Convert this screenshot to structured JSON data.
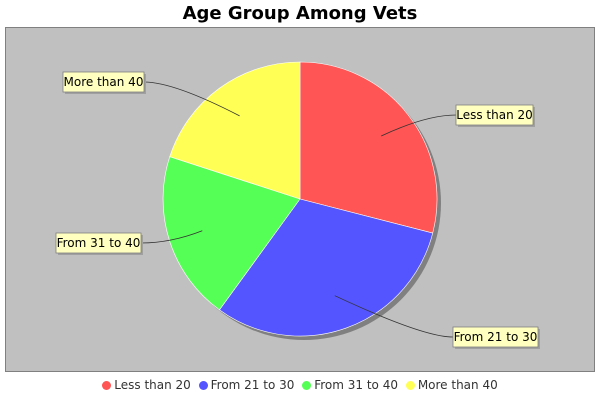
{
  "chart_data": {
    "type": "pie",
    "title": "Age Group Among Vets",
    "categories": [
      "Less than 20",
      "From 21 to 30",
      "From 31 to 40",
      "More than 40"
    ],
    "values": [
      29,
      31,
      20,
      20
    ],
    "colors": [
      "#ff5555",
      "#5555ff",
      "#55ff55",
      "#ffff55"
    ],
    "legend_position": "bottom",
    "plot_background": "#c0c0c0",
    "label_background": "#ffffc0"
  }
}
